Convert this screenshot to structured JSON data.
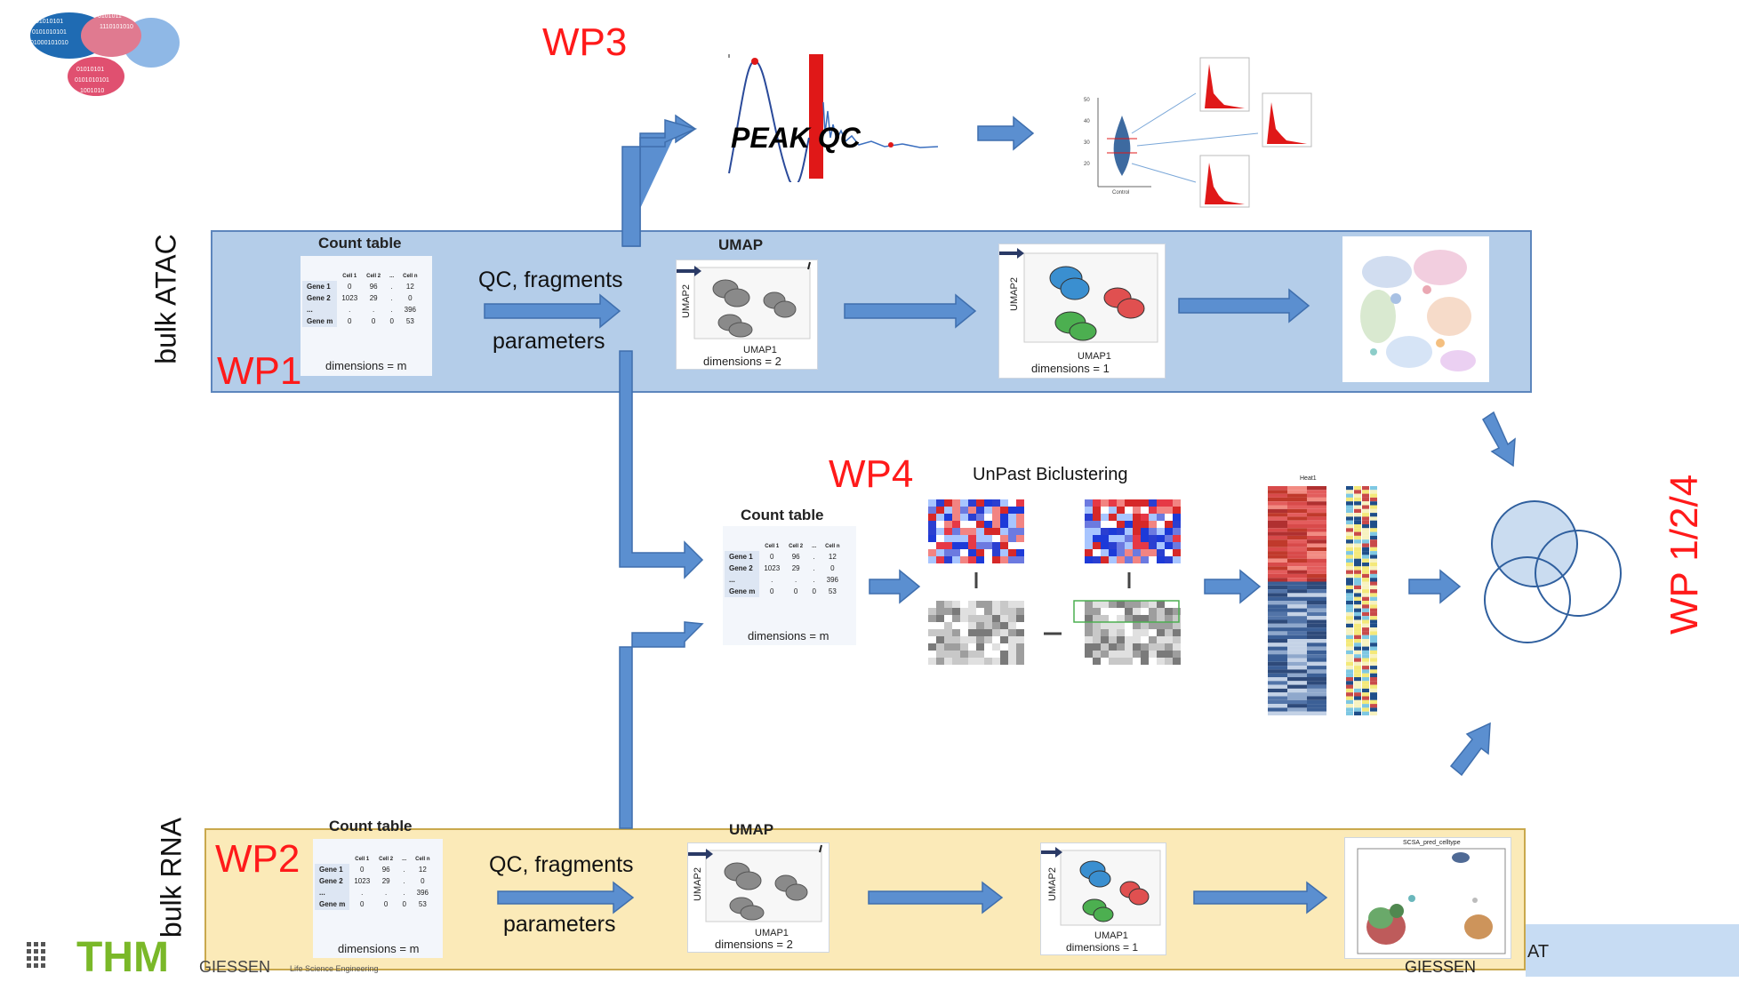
{
  "lanes": {
    "atac": {
      "side_label": "bulk ATAC",
      "wp": "WP1"
    },
    "rna": {
      "side_label": "bulk RNA",
      "wp": "WP2"
    }
  },
  "wp_labels": {
    "wp3": "WP3",
    "wp4": "WP4",
    "wp_right": "WP 1/2/4"
  },
  "peak_qc": {
    "label": "PEAK QC"
  },
  "biclustering": {
    "title": "UnPast Biclustering"
  },
  "count_table": {
    "title": "Count table",
    "columns": [
      "Cell 1",
      "Cell 2",
      "...",
      "Cell n"
    ],
    "rows": [
      {
        "name": "Gene 1",
        "values": [
          "0",
          "96",
          ".",
          "12"
        ]
      },
      {
        "name": "Gene 2",
        "values": [
          "1023",
          "29",
          ".",
          "0"
        ]
      },
      {
        "name": "...",
        "values": [
          ".",
          ".",
          ".",
          "396"
        ]
      },
      {
        "name": "Gene m",
        "values": [
          "0",
          "0",
          "0",
          "53"
        ]
      }
    ],
    "dimensions": "dimensions = m"
  },
  "qc_step": {
    "line1": "QC, fragments",
    "line2": "parameters"
  },
  "umap": {
    "title": "UMAP",
    "xlabel": "UMAP1",
    "ylabel": "UMAP2",
    "dim2": "dimensions = 2",
    "dim1": "dimensions = 1"
  },
  "heatmap": {
    "title": "Heat1"
  },
  "scsa": {
    "title": "SCSA_pred_celltype"
  },
  "footer": {
    "thm": "THM",
    "giessen": "GIESSEN",
    "life_science": "Life Science Engineering",
    "partial": "AT"
  },
  "logo": {
    "text": "01010101 0101010101 01010101 1101010101"
  },
  "colors": {
    "wp_red": "#ff1a1a",
    "atac_fill": "#b4cde9",
    "rna_fill": "#fbeab8",
    "arrow_blue": "#5b8fd0",
    "thm_green": "#7ab829"
  }
}
